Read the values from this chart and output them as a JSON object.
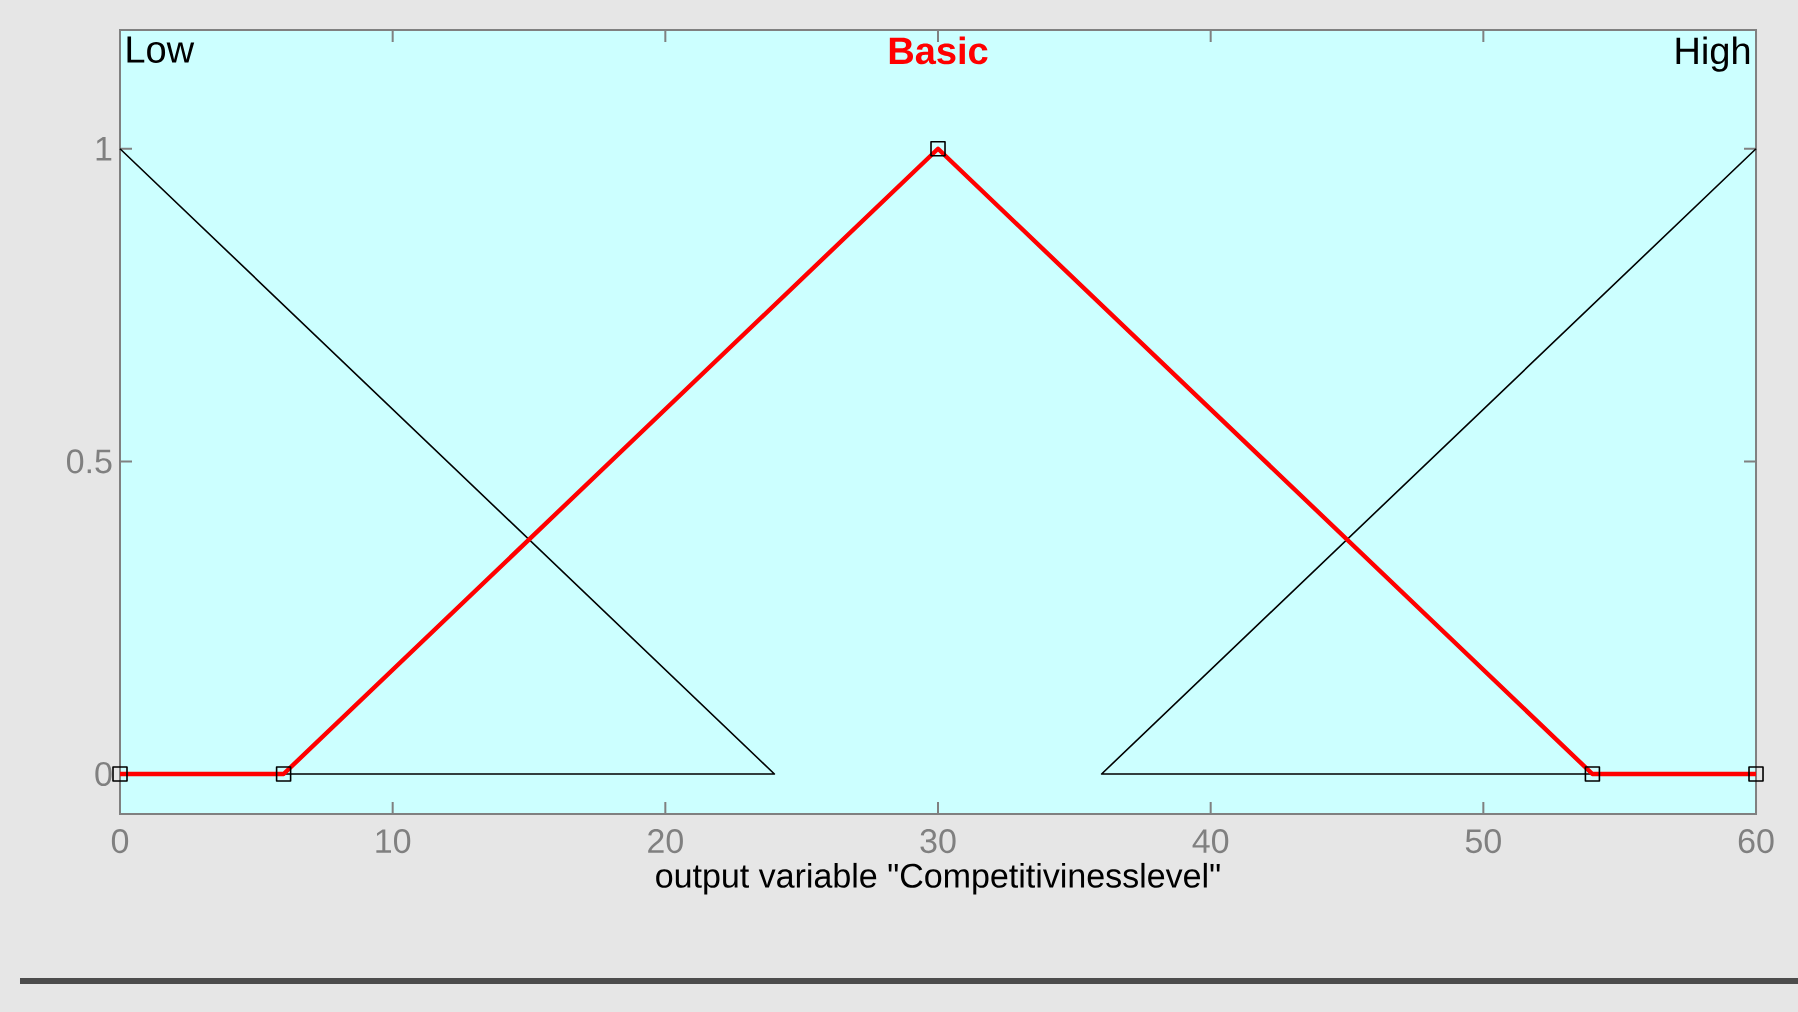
{
  "chart_data": {
    "type": "line",
    "xlabel": "output variable \"Competitivinesslevel\"",
    "xlim": [
      0,
      60
    ],
    "ylim": [
      -0.064,
      1.19
    ],
    "xticks": [
      0,
      10,
      20,
      30,
      40,
      50,
      60
    ],
    "yticks": [
      0,
      0.5,
      1
    ],
    "grid": false,
    "series": [
      {
        "name": "Low",
        "color": "#000000",
        "x": [
          0,
          24,
          0
        ],
        "values": [
          1,
          0,
          0
        ]
      },
      {
        "name": "High",
        "color": "#000000",
        "x": [
          60,
          36,
          60
        ],
        "values": [
          1,
          0,
          0
        ]
      },
      {
        "name": "Basic",
        "color": "#ff0000",
        "x": [
          0,
          6,
          30,
          54,
          60
        ],
        "values": [
          0,
          0,
          1,
          0,
          0
        ],
        "marker": "square"
      }
    ]
  }
}
